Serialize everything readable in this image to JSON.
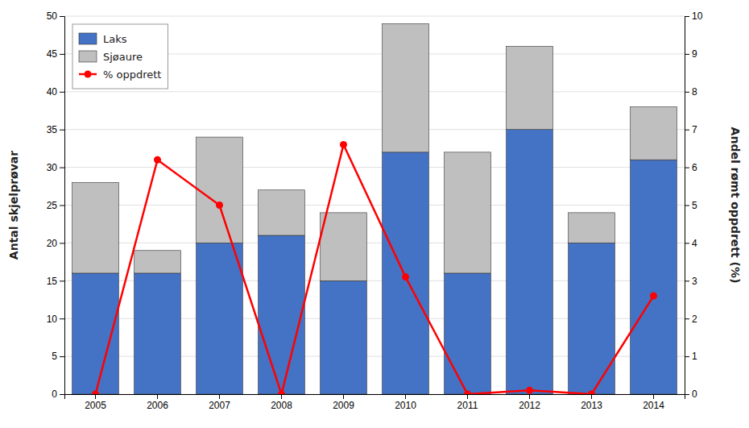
{
  "chart_data": {
    "type": "bar",
    "stacked": true,
    "categories": [
      "2005",
      "2006",
      "2007",
      "2008",
      "2009",
      "2010",
      "2011",
      "2012",
      "2013",
      "2014"
    ],
    "series": [
      {
        "name": "Laks",
        "type": "bar",
        "color": "#4472C4",
        "values": [
          16,
          16,
          20,
          21,
          15,
          32,
          16,
          35,
          20,
          31
        ]
      },
      {
        "name": "Sjøaure",
        "type": "bar",
        "color": "#BFBFBF",
        "values": [
          12,
          3,
          14,
          6,
          9,
          17,
          16,
          11,
          4,
          7
        ]
      },
      {
        "name": "% oppdrett",
        "type": "line",
        "axis": "y2",
        "color": "#FF0000",
        "marker": "circle",
        "line_style": "solid",
        "values": [
          0,
          6.2,
          5.0,
          0,
          6.6,
          3.1,
          0,
          0.1,
          0,
          2.6
        ]
      }
    ],
    "ylabel": "Antal skjelprøvar",
    "y2label": "Andel rømt oppdrett (%)",
    "ylim": [
      0,
      50
    ],
    "yticks": [
      0,
      5,
      10,
      15,
      20,
      25,
      30,
      35,
      40,
      45,
      50
    ],
    "y2lim": [
      0,
      10
    ],
    "y2ticks": [
      0,
      1,
      2,
      3,
      4,
      5,
      6,
      7,
      8,
      9,
      10
    ],
    "grid": true,
    "legend": "top-left"
  }
}
